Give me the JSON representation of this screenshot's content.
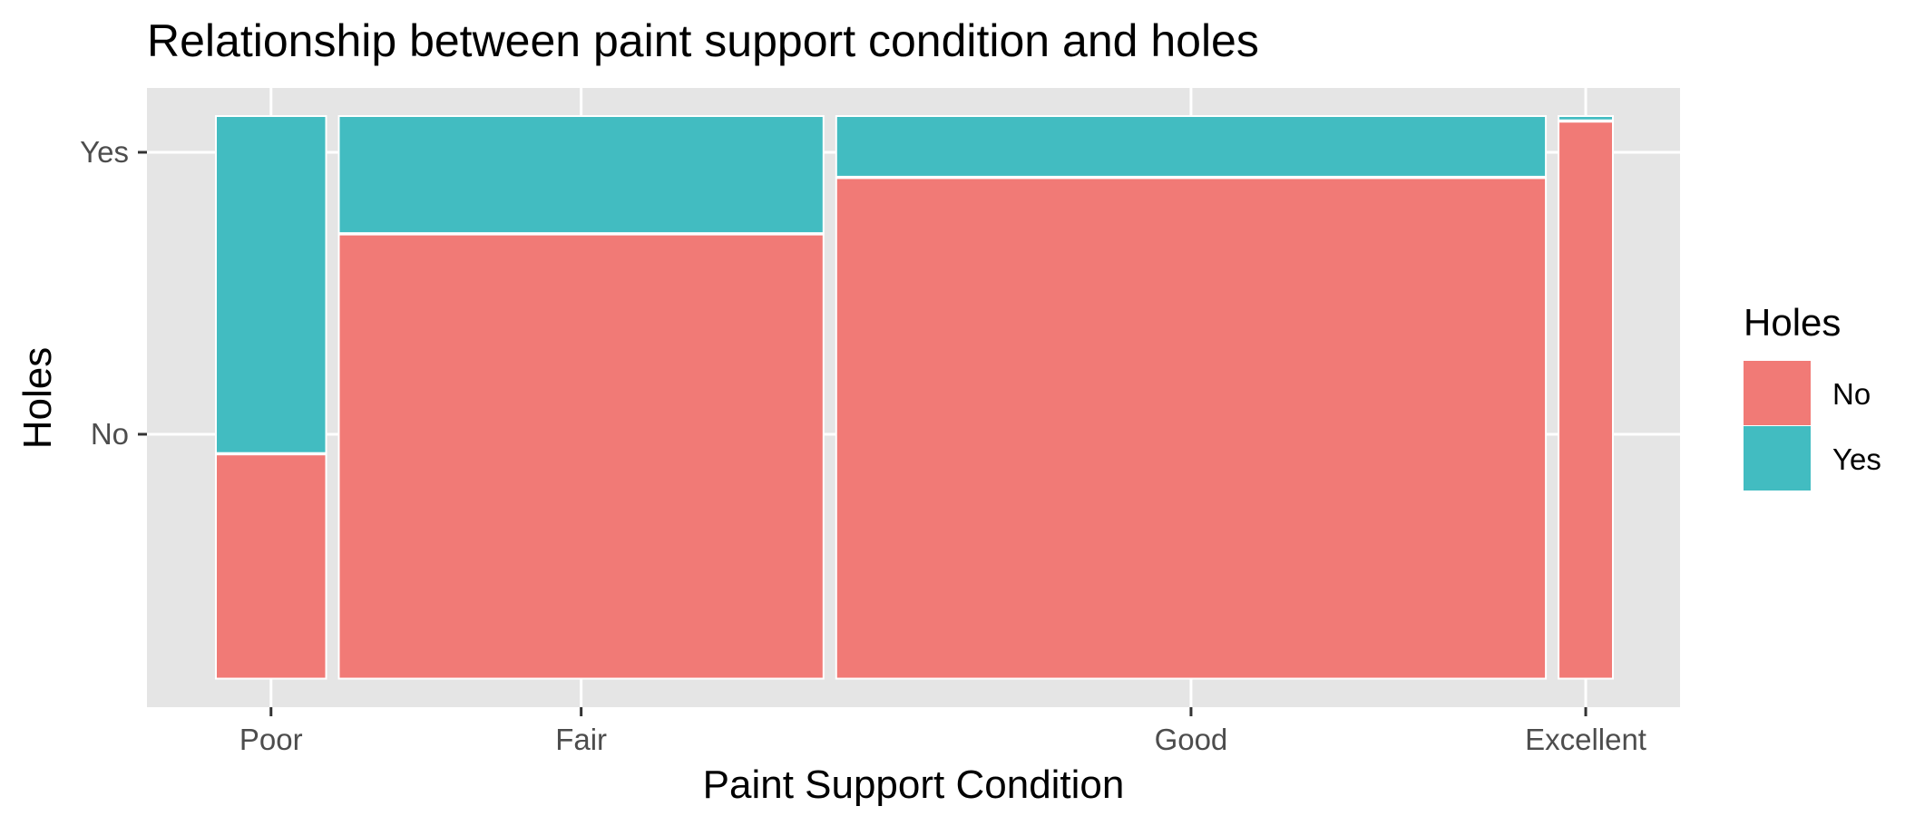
{
  "chart_data": {
    "type": "mosaic",
    "title": "Relationship between paint support condition and holes",
    "xlabel": "Paint Support Condition",
    "ylabel": "Holes",
    "categories": [
      "Poor",
      "Fair",
      "Good",
      "Excellent"
    ],
    "category_width_share": [
      0.073,
      0.321,
      0.47,
      0.036
    ],
    "y_levels": [
      "No",
      "Yes"
    ],
    "series": [
      {
        "name": "No",
        "values": [
          0.4,
          0.79,
          0.89,
          0.99
        ]
      },
      {
        "name": "Yes",
        "values": [
          0.6,
          0.21,
          0.11,
          0.01
        ]
      }
    ],
    "legend": {
      "title": "Holes",
      "position": "right",
      "entries": [
        "No",
        "Yes"
      ]
    },
    "colors": {
      "No": "#f17a76",
      "Yes": "#42bcc1",
      "panel": "#e5e5e5",
      "grid": "#ffffff"
    },
    "grid": true
  }
}
